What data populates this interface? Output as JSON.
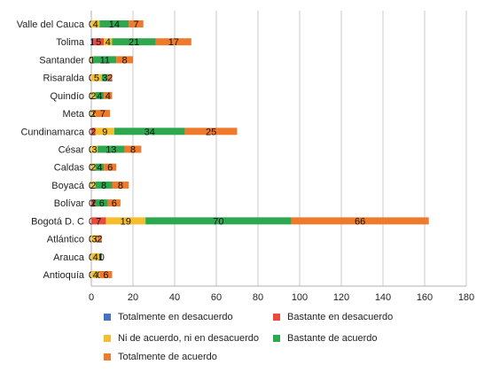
{
  "chart_data": {
    "type": "bar",
    "orientation": "horizontal",
    "stacked": true,
    "categories": [
      "Valle del Cauca",
      "Tolima",
      "Santander",
      "Risaralda",
      "Quindío",
      "Meta",
      "Cundinamarca",
      "César",
      "Caldas",
      "Boyacá",
      "Bolívar",
      "Bogotá D. C",
      "Atlántico",
      "Arauca",
      "Antioquía"
    ],
    "series": [
      {
        "name": "Totalmente en desacuerdo",
        "color": "#4472C4",
        "values": [
          0,
          1,
          0,
          0,
          0,
          0,
          0,
          0,
          0,
          0,
          0,
          0,
          0,
          0,
          0
        ]
      },
      {
        "name": "Bastante en desacuerdo",
        "color": "#E84A3C",
        "values": [
          0,
          5,
          0,
          0,
          0,
          0,
          2,
          0,
          0,
          0,
          2,
          7,
          0,
          0,
          0
        ]
      },
      {
        "name": "Ni de acuerdo, ni en desacuerdo",
        "color": "#F5BE2E",
        "values": [
          4,
          4,
          1,
          5,
          2,
          2,
          9,
          3,
          2,
          2,
          0,
          19,
          3,
          4,
          4
        ]
      },
      {
        "name": "Bastante de acuerdo",
        "color": "#2EA84F",
        "values": [
          14,
          21,
          11,
          3,
          4,
          0,
          34,
          13,
          4,
          8,
          6,
          70,
          0,
          1,
          0
        ]
      },
      {
        "name": "Totalmente de acuerdo",
        "color": "#F07A2C",
        "values": [
          7,
          17,
          8,
          2,
          4,
          7,
          25,
          8,
          6,
          8,
          6,
          66,
          2,
          0,
          6
        ]
      }
    ],
    "xlim": [
      0,
      180
    ],
    "xticks": [
      "0",
      "20",
      "40",
      "60",
      "80",
      "100",
      "120",
      "140",
      "160",
      "180"
    ],
    "grid": true,
    "legend_position": "bottom"
  }
}
